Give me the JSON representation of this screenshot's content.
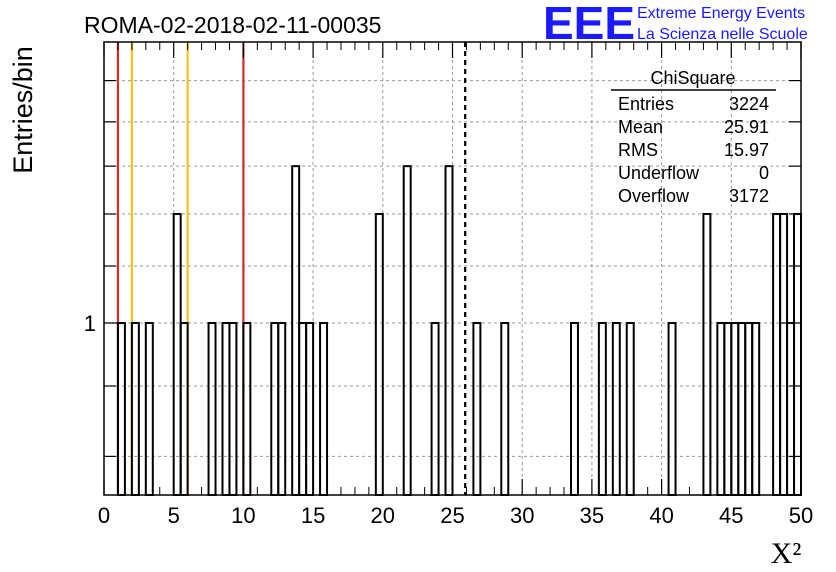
{
  "chart_data": {
    "type": "histogram",
    "title": "ROMA-02-2018-02-11-00035",
    "xlabel": "X²",
    "ylabel": "Entries/bin",
    "xlim": [
      0,
      50
    ],
    "y_scale": "log",
    "ylim": [
      0.75,
      1.6
    ],
    "x_ticks": [
      0,
      5,
      10,
      15,
      20,
      25,
      30,
      35,
      40,
      45,
      50
    ],
    "y_ticks": [
      1
    ],
    "grid": true,
    "bin_width": 0.5,
    "bins": [
      {
        "x": 1.0,
        "y": 1
      },
      {
        "x": 2.0,
        "y": 1
      },
      {
        "x": 3.0,
        "y": 1
      },
      {
        "x": 5.0,
        "y": 1.2
      },
      {
        "x": 5.5,
        "y": 1
      },
      {
        "x": 7.5,
        "y": 1
      },
      {
        "x": 8.5,
        "y": 1
      },
      {
        "x": 9.0,
        "y": 1
      },
      {
        "x": 10.0,
        "y": 1
      },
      {
        "x": 12.0,
        "y": 1
      },
      {
        "x": 12.5,
        "y": 1
      },
      {
        "x": 13.5,
        "y": 1.3
      },
      {
        "x": 14.0,
        "y": 1
      },
      {
        "x": 14.5,
        "y": 1
      },
      {
        "x": 15.5,
        "y": 1
      },
      {
        "x": 19.5,
        "y": 1.2
      },
      {
        "x": 21.5,
        "y": 1.3
      },
      {
        "x": 23.5,
        "y": 1
      },
      {
        "x": 24.5,
        "y": 1.3
      },
      {
        "x": 26.5,
        "y": 1
      },
      {
        "x": 28.5,
        "y": 1
      },
      {
        "x": 33.5,
        "y": 1
      },
      {
        "x": 35.5,
        "y": 1
      },
      {
        "x": 36.5,
        "y": 1
      },
      {
        "x": 37.5,
        "y": 1
      },
      {
        "x": 40.5,
        "y": 1
      },
      {
        "x": 43.0,
        "y": 1.2
      },
      {
        "x": 44.0,
        "y": 1
      },
      {
        "x": 44.5,
        "y": 1
      },
      {
        "x": 45.0,
        "y": 1
      },
      {
        "x": 45.5,
        "y": 1
      },
      {
        "x": 46.0,
        "y": 1
      },
      {
        "x": 46.5,
        "y": 1
      },
      {
        "x": 48.0,
        "y": 1.2
      },
      {
        "x": 48.5,
        "y": 1.2
      },
      {
        "x": 49.0,
        "y": 1
      },
      {
        "x": 49.5,
        "y": 1.2
      }
    ],
    "vertical_lines": [
      {
        "x": 1,
        "color": "#d42a2a",
        "style": "solid"
      },
      {
        "x": 2,
        "color": "#f2c318",
        "style": "solid"
      },
      {
        "x": 6,
        "color": "#f2c318",
        "style": "solid"
      },
      {
        "x": 10,
        "color": "#d42a2a",
        "style": "solid"
      },
      {
        "x": 25.91,
        "color": "#000000",
        "style": "dashed"
      }
    ],
    "stats_box": {
      "title": "ChiSquare",
      "rows": [
        {
          "label": "Entries",
          "value": "3224"
        },
        {
          "label": "Mean",
          "value": "25.91"
        },
        {
          "label": "RMS",
          "value": "15.97"
        },
        {
          "label": "Underflow",
          "value": "0"
        },
        {
          "label": "Overflow",
          "value": "3172"
        }
      ]
    }
  },
  "logo": {
    "mark": "EEE",
    "line1": "Extreme Energy Events",
    "line2": "La Scienza nelle Scuole",
    "color": "#1a1aff"
  }
}
